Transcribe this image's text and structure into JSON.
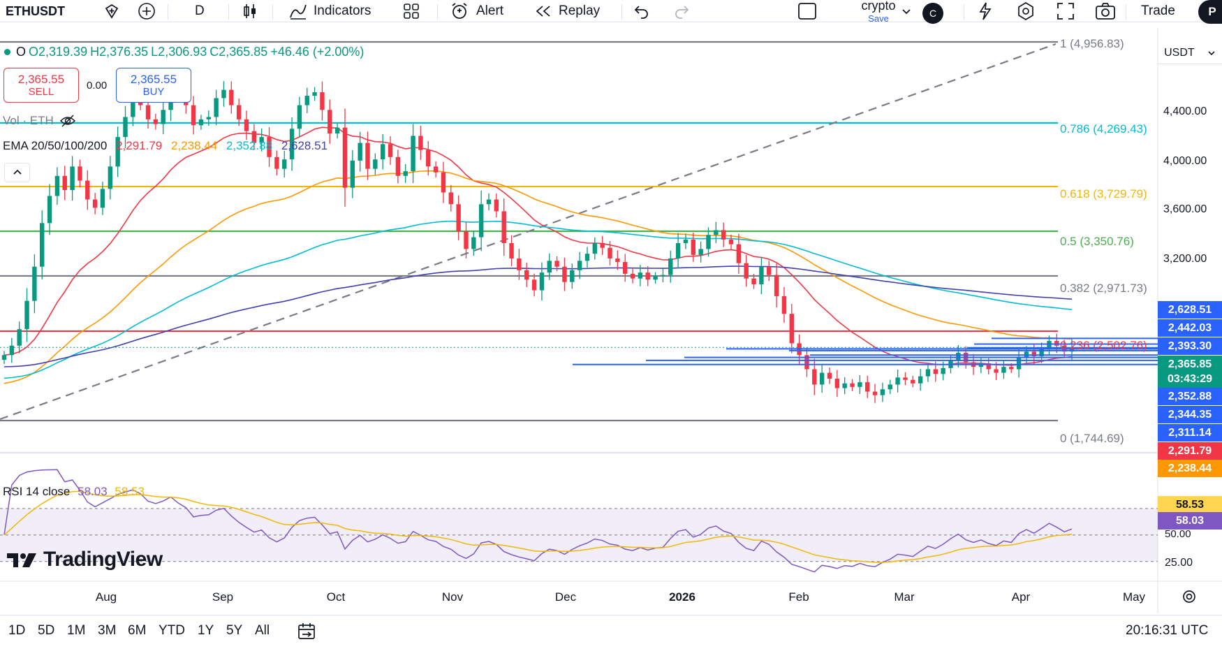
{
  "toolbar": {
    "symbol": "ETHUSDT",
    "interval": "D",
    "indicators_label": "Indicators",
    "alert_label": "Alert",
    "replay_label": "Replay",
    "layout_name": "crypto",
    "save_label": "Save",
    "avatar_letter": "C",
    "trade_label": "Trade",
    "publish_letter": "P"
  },
  "legend": {
    "open": "O2,319.39",
    "high": "H2,376.35",
    "low": "L2,306.93",
    "close": "C2,365.85",
    "change": "+46.46 (+2.00%)"
  },
  "trade": {
    "sell_price": "2,365.55",
    "sell_label": "SELL",
    "spread": "0.00",
    "buy_price": "2,365.55",
    "buy_label": "BUY"
  },
  "volume_label": "Vol · ETH",
  "ema": {
    "label": "EMA 20/50/100/200",
    "v20": "2,291.79",
    "v50": "2,238.44",
    "v100": "2,352.88",
    "v200": "2,628.51"
  },
  "price_scale": {
    "currency": "USDT",
    "ticks": [
      "4,400.00",
      "4,000.00",
      "3,600.00",
      "3,200.00"
    ],
    "tags": [
      {
        "text": "2,628.51",
        "color": "#2962ff"
      },
      {
        "text": "2,442.03",
        "color": "#2962ff"
      },
      {
        "text": "2,393.30",
        "color": "#2962ff"
      },
      {
        "text": "2,365.85",
        "color": "#089981"
      },
      {
        "text": "03:43:29",
        "color": "#089981"
      },
      {
        "text": "2,352.88",
        "color": "#2962ff"
      },
      {
        "text": "2,344.35",
        "color": "#2962ff"
      },
      {
        "text": "2,311.14",
        "color": "#2962ff"
      },
      {
        "text": "2,291.79",
        "color": "#f23645"
      },
      {
        "text": "2,238.44",
        "color": "#ff9800"
      }
    ]
  },
  "fib_levels": [
    {
      "level": "1 (4,956.83)",
      "color": "#787b86"
    },
    {
      "level": "0.786 (4,269.43)",
      "color": "#00bcd4"
    },
    {
      "level": "0.618 (3,729.79)",
      "color": "#f2b705"
    },
    {
      "level": "0.5 (3,350.76)",
      "color": "#4caf50"
    },
    {
      "level": "0.382 (2,971.73)",
      "color": "#787b86"
    },
    {
      "level": "0.236 (2,502.76)",
      "color": "#f23645"
    },
    {
      "level": "0 (1,744.69)",
      "color": "#787b86"
    }
  ],
  "rsi": {
    "label": "RSI 14 close",
    "v1": "58.03",
    "v2": "58.53",
    "scale": [
      "58.53",
      "58.03",
      "50.00",
      "25.00"
    ]
  },
  "brand": "TradingView",
  "time_axis": [
    "Aug",
    "Sep",
    "Oct",
    "Nov",
    "Dec",
    "2026",
    "Feb",
    "Mar",
    "Apr",
    "May"
  ],
  "ranges": [
    "1D",
    "5D",
    "1M",
    "3M",
    "6M",
    "YTD",
    "1Y",
    "5Y",
    "All"
  ],
  "clock": "20:16:31 UTC",
  "colors": {
    "up": "#089981",
    "down": "#f23645",
    "ema20": "#f23645",
    "ema50": "#ff9800",
    "ema100": "#00bcd4",
    "ema200": "#3f3fb0",
    "rsi": "#7e57c2"
  },
  "chart_data": {
    "type": "candlestick",
    "interval": "D",
    "x_range": [
      "Aug",
      "May"
    ],
    "y_range": [
      1744.69,
      4956.83
    ],
    "closes": [
      2300,
      2380,
      2520,
      2760,
      3050,
      3420,
      3650,
      3820,
      3700,
      3900,
      3780,
      3620,
      3550,
      3710,
      3900,
      4150,
      4320,
      4480,
      4420,
      4300,
      4260,
      4380,
      4600,
      4500,
      4420,
      4250,
      4300,
      4320,
      4480,
      4550,
      4420,
      4300,
      4200,
      4100,
      4150,
      3980,
      3880,
      3960,
      4220,
      4420,
      4500,
      4530,
      4380,
      4180,
      4230,
      3720,
      3950,
      4100,
      3880,
      3960,
      4090,
      3980,
      3820,
      3860,
      4160,
      4040,
      3900,
      3850,
      3680,
      3580,
      3350,
      3200,
      3300,
      3580,
      3620,
      3520,
      3250,
      3120,
      3020,
      2940,
      2850,
      3000,
      3100,
      3050,
      2920,
      3020,
      3100,
      3160,
      3250,
      3210,
      3120,
      3090,
      2990,
      2950,
      3000,
      2940,
      2970,
      2980,
      3120,
      3250,
      3280,
      3150,
      3200,
      3320,
      3360,
      3280,
      3240,
      3080,
      2950,
      2900,
      3050,
      2980,
      2800,
      2650,
      2400,
      2300,
      2180,
      2050,
      2150,
      2100,
      2020,
      2060,
      2030,
      2070,
      1990,
      1960,
      2010,
      2050,
      2110,
      2090,
      2060,
      2120,
      2180,
      2140,
      2190,
      2260,
      2320,
      2240,
      2200,
      2230,
      2180,
      2150,
      2200,
      2180,
      2280,
      2330,
      2290,
      2350,
      2420,
      2380,
      2330,
      2365.85
    ]
  }
}
